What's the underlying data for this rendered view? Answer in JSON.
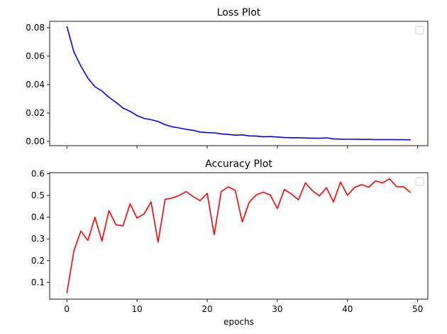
{
  "chart_data": [
    {
      "type": "line",
      "title": "Loss Plot",
      "xlabel": "",
      "ylabel": "",
      "xlim": [
        -2.45,
        51.45
      ],
      "ylim": [
        -0.003,
        0.0845
      ],
      "xticks": [
        0,
        10,
        20,
        30,
        40,
        50
      ],
      "show_xtick_labels": false,
      "yticks": [
        0.0,
        0.02,
        0.04,
        0.06,
        0.08
      ],
      "ytick_labels": [
        "0.00",
        "0.02",
        "0.04",
        "0.06",
        "0.08"
      ],
      "legend": "top-right (empty)",
      "grid": false,
      "series": [
        {
          "color": "#0000ff",
          "x": [
            0,
            1,
            2,
            3,
            4,
            5,
            6,
            7,
            8,
            9,
            10,
            11,
            12,
            13,
            14,
            15,
            16,
            17,
            18,
            19,
            20,
            21,
            22,
            23,
            24,
            25,
            26,
            27,
            28,
            29,
            30,
            31,
            32,
            33,
            34,
            35,
            36,
            37,
            38,
            39,
            40,
            41,
            42,
            43,
            44,
            45,
            46,
            47,
            48,
            49
          ],
          "values": [
            0.081,
            0.063,
            0.053,
            0.0445,
            0.0385,
            0.0355,
            0.031,
            0.0275,
            0.0235,
            0.0212,
            0.0182,
            0.0162,
            0.0153,
            0.014,
            0.0118,
            0.0103,
            0.0095,
            0.0085,
            0.0078,
            0.0066,
            0.0062,
            0.006,
            0.0053,
            0.0049,
            0.0044,
            0.0046,
            0.0039,
            0.0038,
            0.0033,
            0.0034,
            0.0031,
            0.0027,
            0.0026,
            0.0026,
            0.0024,
            0.0023,
            0.0022,
            0.0025,
            0.0018,
            0.0016,
            0.0015,
            0.0015,
            0.0014,
            0.0014,
            0.0013,
            0.0013,
            0.0013,
            0.0012,
            0.0012,
            0.0011
          ]
        }
      ]
    },
    {
      "type": "line",
      "title": "Accuracy Plot",
      "xlabel": "epochs",
      "ylabel": "",
      "xlim": [
        -2.45,
        51.45
      ],
      "ylim": [
        0.0225,
        0.605
      ],
      "xticks": [
        0,
        10,
        20,
        30,
        40,
        50
      ],
      "xtick_labels": [
        "0",
        "10",
        "20",
        "30",
        "40",
        "50"
      ],
      "yticks": [
        0.1,
        0.2,
        0.3,
        0.4,
        0.5,
        0.6
      ],
      "ytick_labels": [
        "0.1",
        "0.2",
        "0.3",
        "0.4",
        "0.5",
        "0.6"
      ],
      "legend": "top-right (empty)",
      "grid": false,
      "series": [
        {
          "color": "#ff0000",
          "x": [
            0,
            1,
            2,
            3,
            4,
            5,
            6,
            7,
            8,
            9,
            10,
            11,
            12,
            13,
            14,
            15,
            16,
            17,
            18,
            19,
            20,
            21,
            22,
            23,
            24,
            25,
            26,
            27,
            28,
            29,
            30,
            31,
            32,
            33,
            34,
            35,
            36,
            37,
            38,
            39,
            40,
            41,
            42,
            43,
            44,
            45,
            46,
            47,
            48,
            49
          ],
          "values": [
            0.05,
            0.245,
            0.336,
            0.293,
            0.4,
            0.29,
            0.43,
            0.365,
            0.36,
            0.462,
            0.396,
            0.415,
            0.47,
            0.285,
            0.482,
            0.488,
            0.5,
            0.518,
            0.495,
            0.476,
            0.51,
            0.32,
            0.518,
            0.54,
            0.523,
            0.378,
            0.47,
            0.503,
            0.515,
            0.502,
            0.44,
            0.528,
            0.507,
            0.48,
            0.558,
            0.522,
            0.498,
            0.536,
            0.47,
            0.562,
            0.501,
            0.537,
            0.55,
            0.538,
            0.567,
            0.558,
            0.577,
            0.54,
            0.54,
            0.513
          ]
        }
      ]
    }
  ]
}
